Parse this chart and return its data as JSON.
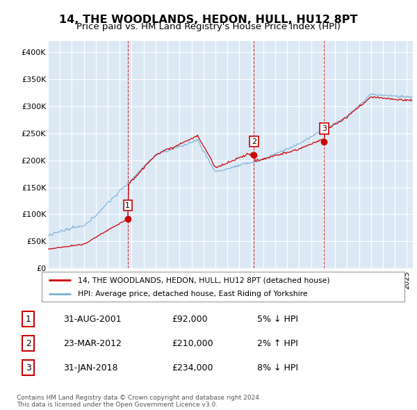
{
  "title": "14, THE WOODLANDS, HEDON, HULL, HU12 8PT",
  "subtitle": "Price paid vs. HM Land Registry's House Price Index (HPI)",
  "ylim": [
    0,
    420000
  ],
  "yticks": [
    0,
    50000,
    100000,
    150000,
    200000,
    250000,
    300000,
    350000,
    400000
  ],
  "ytick_labels": [
    "£0",
    "£50K",
    "£100K",
    "£150K",
    "£200K",
    "£250K",
    "£300K",
    "£350K",
    "£400K"
  ],
  "xlim_start": 1995.0,
  "xlim_end": 2025.5,
  "sales": [
    {
      "date_num": 2001.67,
      "price": 92000,
      "label": "1",
      "date_str": "31-AUG-2001",
      "amount": "£92,000",
      "pct": "5% ↓ HPI"
    },
    {
      "date_num": 2012.22,
      "price": 210000,
      "label": "2",
      "date_str": "23-MAR-2012",
      "amount": "£210,000",
      "pct": "2% ↑ HPI"
    },
    {
      "date_num": 2018.08,
      "price": 234000,
      "label": "3",
      "date_str": "31-JAN-2018",
      "amount": "£234,000",
      "pct": "8% ↓ HPI"
    }
  ],
  "hpi_line_color": "#7bafd4",
  "price_line_color": "#cc0000",
  "sale_marker_color": "#cc0000",
  "vline_color": "#cc0000",
  "plot_bg": "#dce9f5",
  "grid_color": "#ffffff",
  "legend_line1": "14, THE WOODLANDS, HEDON, HULL, HU12 8PT (detached house)",
  "legend_line2": "HPI: Average price, detached house, East Riding of Yorkshire",
  "footer": "Contains HM Land Registry data © Crown copyright and database right 2024.\nThis data is licensed under the Open Government Licence v3.0.",
  "title_fontsize": 11.5,
  "subtitle_fontsize": 9.5
}
